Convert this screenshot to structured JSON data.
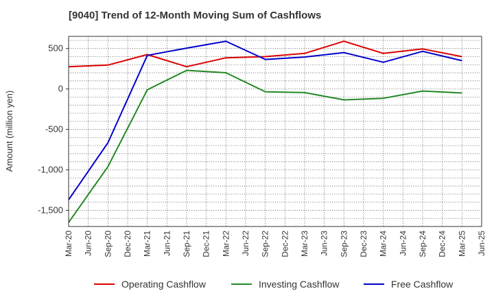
{
  "chart_data": {
    "type": "line",
    "title": "[9040]  Trend of 12-Month Moving Sum of Cashflows",
    "ylabel": "Amount (million yen)",
    "xlabel": "",
    "x_ticks": [
      "Mar-20",
      "Jun-20",
      "Sep-20",
      "Dec-20",
      "Mar-21",
      "Jun-21",
      "Sep-21",
      "Dec-21",
      "Mar-22",
      "Jun-22",
      "Sep-22",
      "Dec-22",
      "Mar-23",
      "Jun-23",
      "Sep-23",
      "Dec-23",
      "Mar-24",
      "Jun-24",
      "Sep-24",
      "Dec-24",
      "Mar-25",
      "Jun-25"
    ],
    "y_ticks": [
      500,
      0,
      -500,
      -1000,
      -1500
    ],
    "y_tick_labels": [
      "500",
      "0",
      "-500",
      "-1,000",
      "-1,500"
    ],
    "ylim": [
      -1700,
      650
    ],
    "x_points": [
      "Mar-20",
      "Sep-20",
      "Mar-21",
      "Sep-21",
      "Mar-22",
      "Sep-22",
      "Mar-23",
      "Sep-23",
      "Mar-24",
      "Sep-24",
      "Mar-25"
    ],
    "series": [
      {
        "name": "Operating Cashflow",
        "color": "#dd0000",
        "values": [
          275,
          295,
          425,
          275,
          385,
          400,
          440,
          590,
          440,
          495,
          400
        ]
      },
      {
        "name": "Investing Cashflow",
        "color": "#228822",
        "values": [
          -1650,
          -960,
          -10,
          230,
          200,
          -35,
          -45,
          -135,
          -115,
          -25,
          -50
        ]
      },
      {
        "name": "Free Cashflow",
        "color": "#0000cc",
        "values": [
          -1370,
          -665,
          415,
          505,
          590,
          365,
          395,
          450,
          330,
          465,
          350
        ]
      }
    ],
    "grid": true,
    "legend_position": "bottom"
  }
}
